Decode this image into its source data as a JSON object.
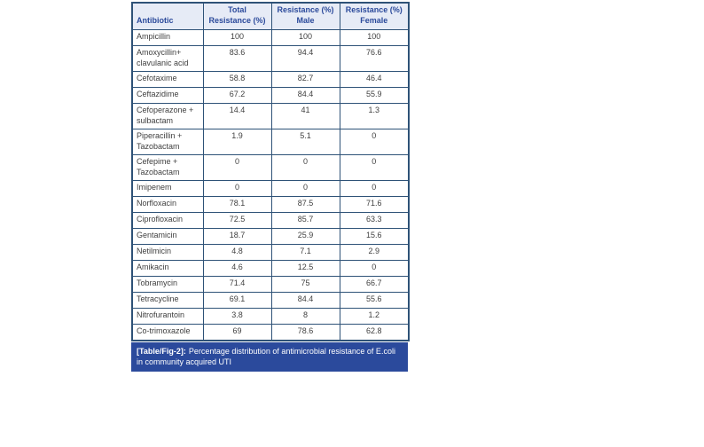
{
  "page": {
    "background": "#ffffff"
  },
  "colors": {
    "border": "#2e5277",
    "header_bg": "#e6ebf6",
    "header_text": "#2b4a9b",
    "caption_bg": "#2b4a9c",
    "caption_text": "#ffffff",
    "cell_text": "#3f3f3f"
  },
  "table": {
    "columns": [
      "Antibiotic",
      "Total Resistance (%)",
      "Resistance (%) Male",
      "Resistance (%) Female"
    ],
    "rows": [
      {
        "antibiotic": "Ampicillin",
        "total": "100",
        "male": "100",
        "female": "100"
      },
      {
        "antibiotic": "Amoxycillin+ clavulanic acid",
        "total": "83.6",
        "male": "94.4",
        "female": "76.6"
      },
      {
        "antibiotic": "Cefotaxime",
        "total": "58.8",
        "male": "82.7",
        "female": "46.4"
      },
      {
        "antibiotic": "Ceftazidime",
        "total": "67.2",
        "male": "84.4",
        "female": "55.9"
      },
      {
        "antibiotic": "Cefoperazone + sulbactam",
        "total": "14.4",
        "male": "41",
        "female": "1.3"
      },
      {
        "antibiotic": "Piperacillin + Tazobactam",
        "total": "1.9",
        "male": "5.1",
        "female": "0"
      },
      {
        "antibiotic": "Cefepime + Tazobactam",
        "total": "0",
        "male": "0",
        "female": "0"
      },
      {
        "antibiotic": "Imipenem",
        "total": "0",
        "male": "0",
        "female": "0"
      },
      {
        "antibiotic": "Norfloxacin",
        "total": "78.1",
        "male": "87.5",
        "female": "71.6"
      },
      {
        "antibiotic": "Ciprofloxacin",
        "total": "72.5",
        "male": "85.7",
        "female": "63.3"
      },
      {
        "antibiotic": "Gentamicin",
        "total": "18.7",
        "male": "25.9",
        "female": "15.6"
      },
      {
        "antibiotic": "Netilmicin",
        "total": "4.8",
        "male": "7.1",
        "female": "2.9"
      },
      {
        "antibiotic": "Amikacin",
        "total": "4.6",
        "male": "12.5",
        "female": "0"
      },
      {
        "antibiotic": "Tobramycin",
        "total": "71.4",
        "male": "75",
        "female": "66.7"
      },
      {
        "antibiotic": "Tetracycline",
        "total": "69.1",
        "male": "84.4",
        "female": "55.6"
      },
      {
        "antibiotic": "Nitrofurantoin",
        "total": "3.8",
        "male": "8",
        "female": "1.2"
      },
      {
        "antibiotic": "Co-trimoxazole",
        "total": "69",
        "male": "78.6",
        "female": "62.8"
      }
    ],
    "caption_label": "[Table/Fig-2]:",
    "caption_text": "Percentage distribution of antimicrobial resistance of E.coli in community acquired UTI"
  },
  "chart_data": {
    "type": "table",
    "title": "[Table/Fig-2]: Percentage distribution of antimicrobial resistance of E.coli in community acquired UTI",
    "categories": [
      "Ampicillin",
      "Amoxycillin+ clavulanic acid",
      "Cefotaxime",
      "Ceftazidime",
      "Cefoperazone + sulbactam",
      "Piperacillin + Tazobactam",
      "Cefepime + Tazobactam",
      "Imipenem",
      "Norfloxacin",
      "Ciprofloxacin",
      "Gentamicin",
      "Netilmicin",
      "Amikacin",
      "Tobramycin",
      "Tetracycline",
      "Nitrofurantoin",
      "Co-trimoxazole"
    ],
    "series": [
      {
        "name": "Total Resistance (%)",
        "values": [
          100,
          83.6,
          58.8,
          67.2,
          14.4,
          1.9,
          0,
          0,
          78.1,
          72.5,
          18.7,
          4.8,
          4.6,
          71.4,
          69.1,
          3.8,
          69
        ]
      },
      {
        "name": "Resistance (%) Male",
        "values": [
          100,
          94.4,
          82.7,
          84.4,
          41,
          5.1,
          0,
          0,
          87.5,
          85.7,
          25.9,
          7.1,
          12.5,
          75,
          84.4,
          8,
          78.6
        ]
      },
      {
        "name": "Resistance (%) Female",
        "values": [
          100,
          76.6,
          46.4,
          55.9,
          1.3,
          0,
          0,
          0,
          71.6,
          63.3,
          15.6,
          2.9,
          0,
          66.7,
          55.6,
          1.2,
          62.8
        ]
      }
    ]
  }
}
